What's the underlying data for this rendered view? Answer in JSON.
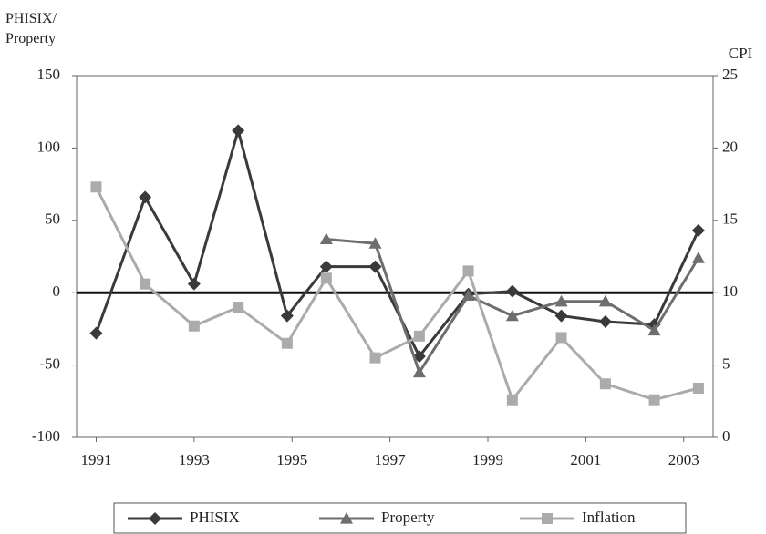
{
  "chart_data": {
    "type": "line",
    "y_label": "PHISIX/\nProperty",
    "y2_label": "CPI",
    "x": [
      1991,
      1992,
      1993,
      1993.9,
      1994.9,
      1995.7,
      1996.7,
      1997.6,
      1998.6,
      1999.5,
      2000.5,
      2001.4,
      2002.4,
      2003.3
    ],
    "xlim": [
      1990.6,
      2003.6
    ],
    "xticks": [
      1991,
      1993,
      1995,
      1997,
      1999,
      2001,
      2003
    ],
    "ylim": [
      -100,
      150
    ],
    "yticks": [
      {
        "value": -100,
        "label": "-100"
      },
      {
        "value": -50,
        "label": "-50"
      },
      0,
      50,
      100,
      150
    ],
    "y2lim": [
      0,
      25
    ],
    "y2ticks": [
      0,
      5,
      10,
      15,
      20,
      25
    ],
    "series": [
      {
        "name": "PHISIX",
        "color": "#3a3a3a",
        "marker": "diamond",
        "values": [
          -28,
          66,
          6,
          112,
          -16,
          18,
          18,
          -44,
          -1,
          1,
          -16,
          -20,
          -22,
          43
        ]
      },
      {
        "name": "Property",
        "color": "#6e6e6e",
        "marker": "triangle",
        "values": [
          null,
          null,
          null,
          null,
          null,
          37,
          34,
          -55,
          -2,
          -16,
          -6,
          -6,
          -26,
          24
        ]
      },
      {
        "name": "Inflation",
        "color": "#ababab",
        "marker": "square",
        "axis": "y2",
        "values": [
          17.3,
          10.6,
          7.7,
          9.0,
          6.5,
          11.0,
          5.5,
          7.0,
          11.5,
          2.6,
          6.9,
          3.7,
          2.6,
          3.4
        ]
      }
    ]
  }
}
